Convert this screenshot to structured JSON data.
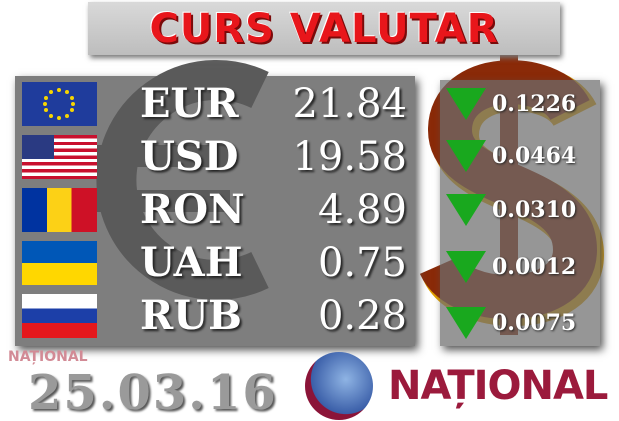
{
  "title": "CURS VALUTAR",
  "date": "25.03.16",
  "brand": "NAȚIONAL",
  "watermark": "NAȚIONAL",
  "colors": {
    "title": "#e8161b",
    "down_arrow": "#19a81e",
    "brand": "#9b1a3c"
  },
  "rates": [
    {
      "flag": "eu-flag-icon",
      "code": "EUR",
      "value": "21.84",
      "change": "0.1226",
      "direction": "down"
    },
    {
      "flag": "us-flag-icon",
      "code": "USD",
      "value": "19.58",
      "change": "0.0464",
      "direction": "down"
    },
    {
      "flag": "ro-flag-icon",
      "code": "RON",
      "value": "4.89",
      "change": "0.0310",
      "direction": "down"
    },
    {
      "flag": "ua-flag-icon",
      "code": "UAH",
      "value": "0.75",
      "change": "0.0012",
      "direction": "down"
    },
    {
      "flag": "ru-flag-icon",
      "code": "RUB",
      "value": "0.28",
      "change": "0.0075",
      "direction": "down"
    }
  ]
}
